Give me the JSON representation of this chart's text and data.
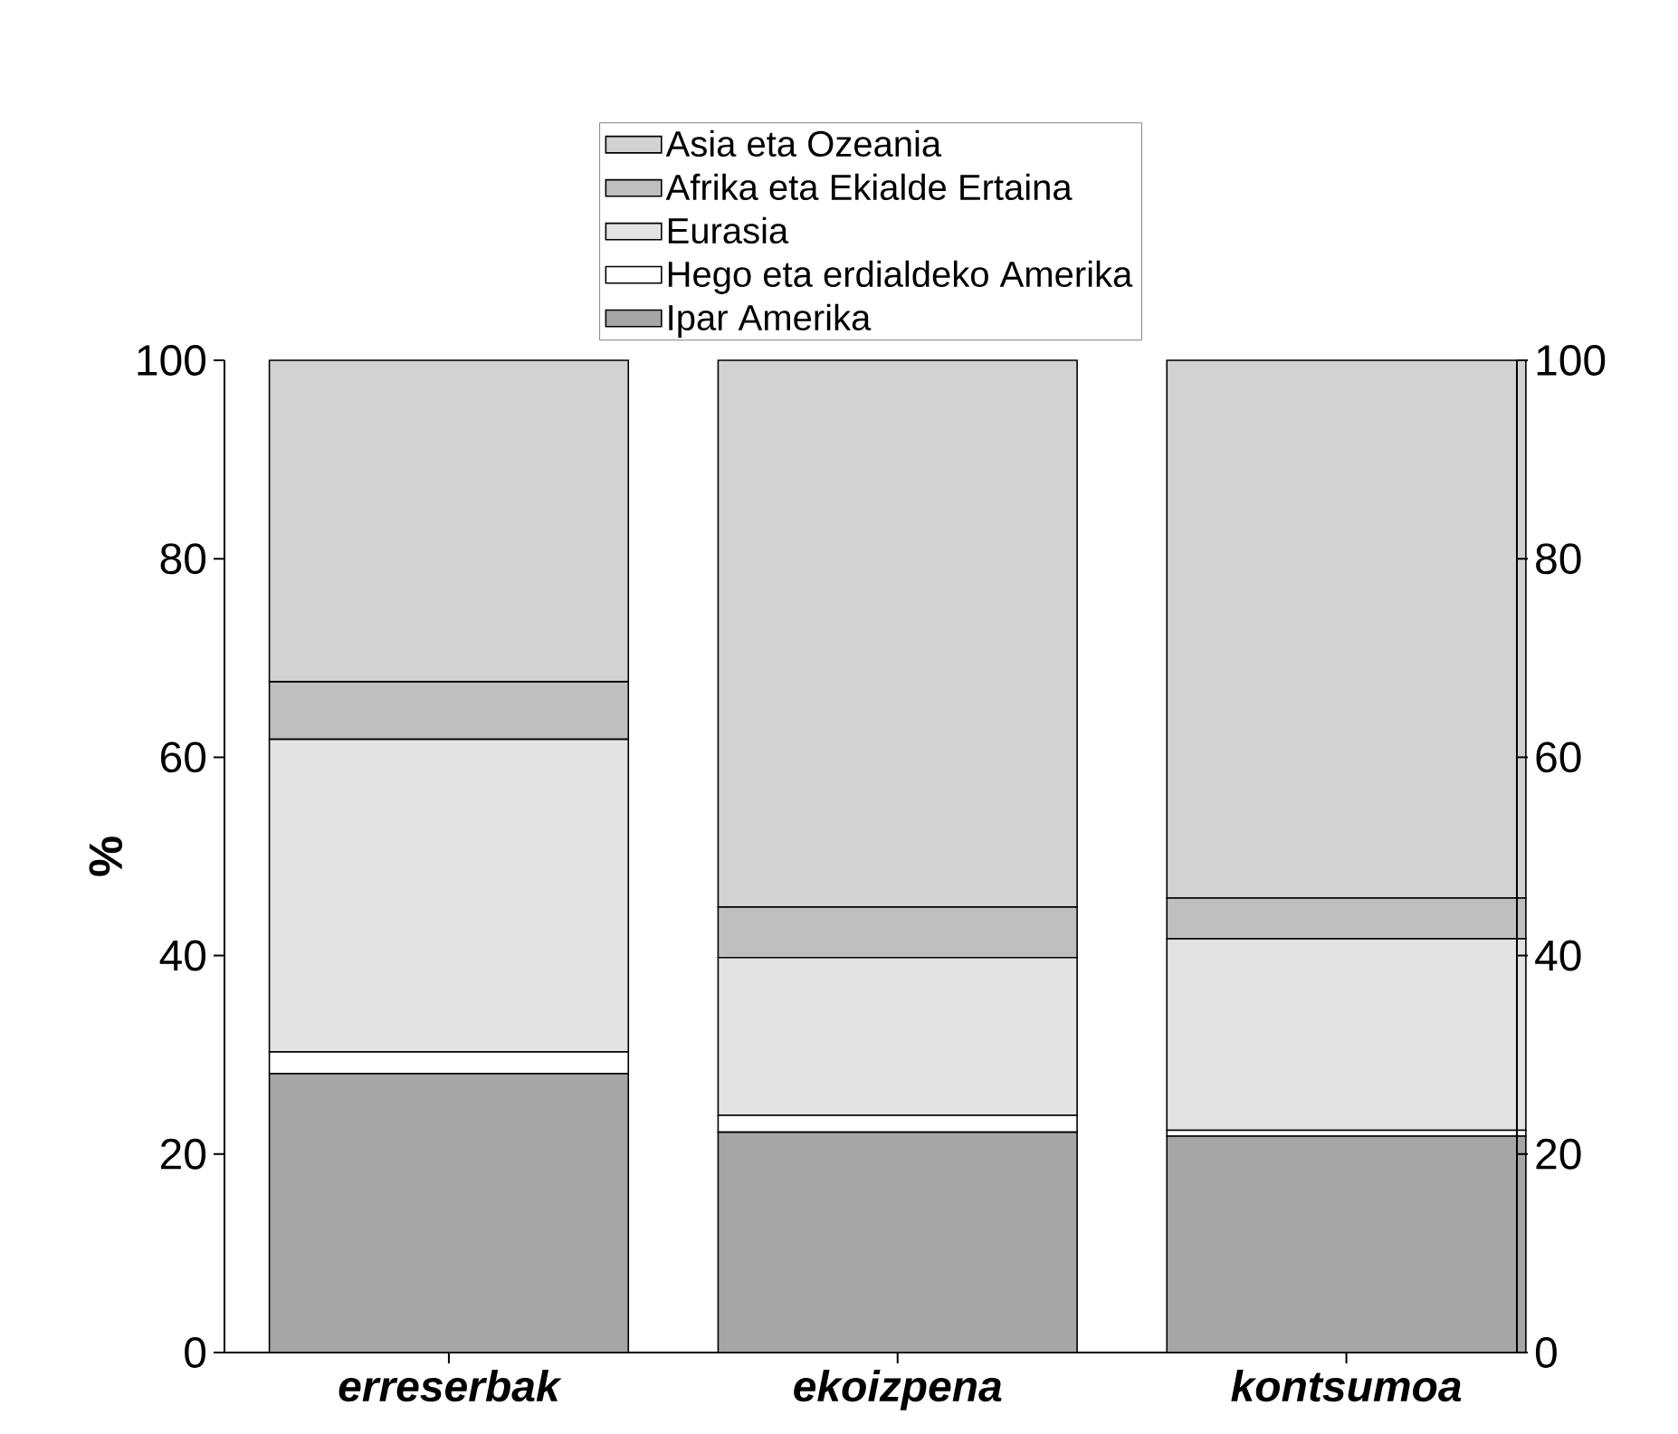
{
  "chart_data": {
    "type": "bar",
    "stacked": true,
    "ylabel": "%",
    "categories": [
      "erreserbak",
      "ekoizpena",
      "kontsumoa"
    ],
    "series": [
      {
        "name": "Ipar Amerika",
        "color": "#a6a6a6",
        "values": [
          28.1,
          22.2,
          21.8
        ]
      },
      {
        "name": "Hego eta erdialdeko Amerika",
        "color": "#ffffff",
        "values": [
          2.2,
          1.7,
          0.6
        ]
      },
      {
        "name": "Eurasia",
        "color": "#e3e3e3",
        "values": [
          31.5,
          15.9,
          19.3
        ]
      },
      {
        "name": "Afrika eta Ekialde Ertaina",
        "color": "#bfbfbf",
        "values": [
          5.8,
          5.1,
          4.1
        ]
      },
      {
        "name": "Asia eta Ozeania",
        "color": "#d2d2d2",
        "values": [
          32.4,
          55.1,
          54.2
        ]
      }
    ],
    "ylim": [
      0,
      100
    ],
    "yticks": [
      0,
      20,
      40,
      60,
      80,
      100
    ],
    "y2lim": [
      0,
      100
    ],
    "y2ticks": [
      0,
      20,
      40,
      60,
      80,
      100
    ],
    "legend": "top",
    "grid": false
  }
}
